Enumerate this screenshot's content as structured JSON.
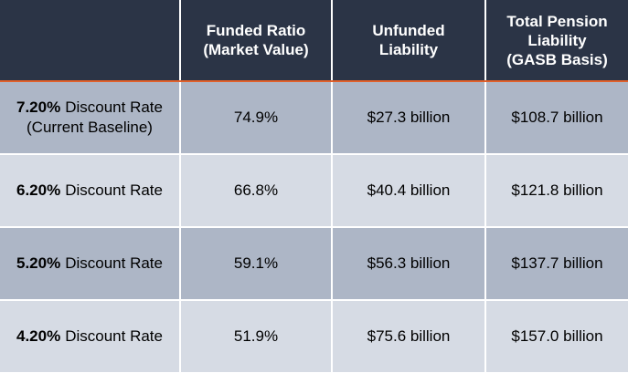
{
  "table": {
    "header": [
      [],
      [
        "Funded Ratio",
        "(Market Value)"
      ],
      [
        "Unfunded",
        "Liability"
      ],
      [
        "Total Pension",
        "Liability",
        "(GASB Basis)"
      ]
    ],
    "rows": [
      {
        "rate": "7.20%",
        "label": "Discount Rate",
        "note": "(Current Baseline)",
        "cells": [
          "74.9%",
          "$27.3 billion",
          "$108.7 billion"
        ]
      },
      {
        "rate": "6.20%",
        "label": "Discount Rate",
        "cells": [
          "66.8%",
          "$40.4 billion",
          "$121.8 billion"
        ]
      },
      {
        "rate": "5.20%",
        "label": "Discount Rate",
        "cells": [
          "59.1%",
          "$56.3 billion",
          "$137.7 billion"
        ]
      },
      {
        "rate": "4.20%",
        "label": "Discount Rate",
        "cells": [
          "51.9%",
          "$75.6 billion",
          "$157.0 billion"
        ]
      }
    ]
  }
}
